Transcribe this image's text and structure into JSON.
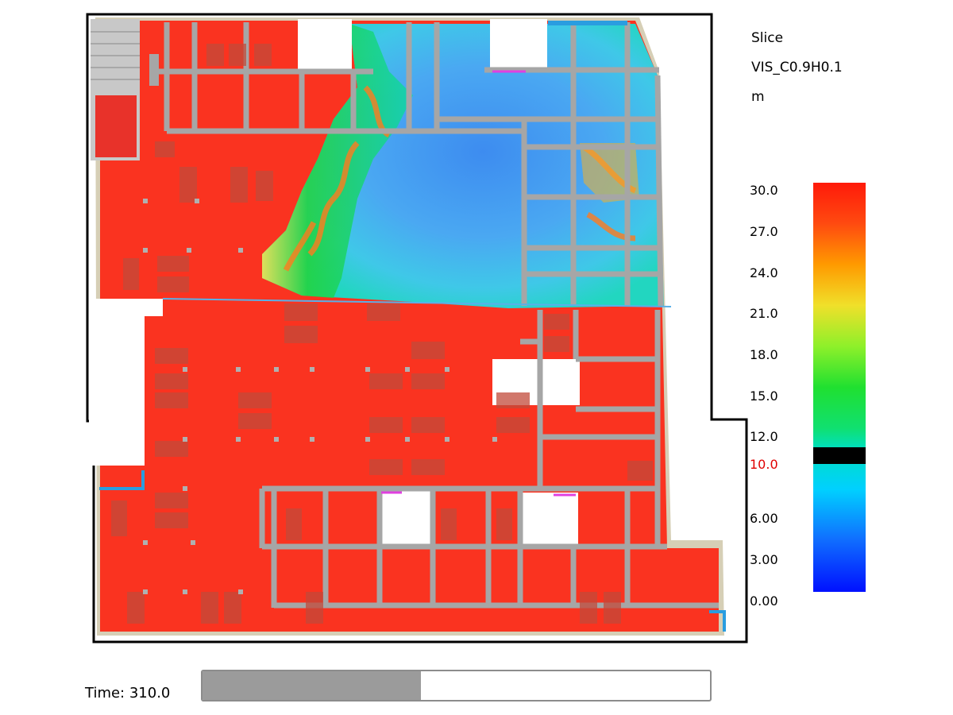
{
  "legend": {
    "title_lines": [
      "Slice",
      "VIS_C0.9H0.1",
      "m"
    ],
    "ticks": [
      "30.0",
      "27.0",
      "24.0",
      "21.0",
      "18.0",
      "15.0",
      "12.0",
      "10.0",
      "6.00",
      "3.00",
      "0.00"
    ],
    "highlight_tick": "10.0",
    "highlight_color": "#e00000",
    "scale_min": 0,
    "scale_max": 30
  },
  "colors": {
    "hot": "#fa3320",
    "wall": "#a6a6a6",
    "dark_block": "#c24a3a",
    "border": "#000000"
  },
  "time": {
    "label": "Time: 310.0",
    "progress": 0.43
  }
}
